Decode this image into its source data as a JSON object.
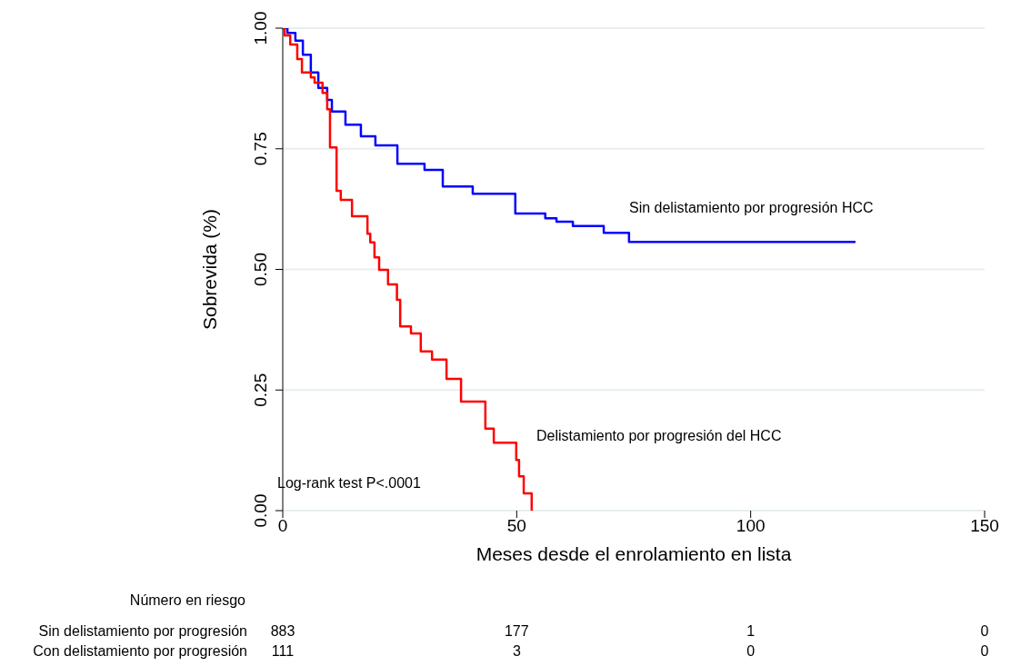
{
  "chart_data": {
    "type": "step",
    "xlabel": "Meses desde el enrolamiento en lista",
    "ylabel": "Sobrevida (%)",
    "xlim": [
      0,
      150
    ],
    "xticks": [
      0,
      50,
      100,
      150
    ],
    "ylim": [
      0,
      1
    ],
    "yticks": [
      {
        "value": 0,
        "label": "0.00"
      },
      {
        "value": 0.25,
        "label": "0.25"
      },
      {
        "value": 0.5,
        "label": "0.50"
      },
      {
        "value": 0.75,
        "label": "0.75"
      },
      {
        "value": 1,
        "label": "1.00"
      }
    ],
    "grid": "y",
    "legend": false,
    "marker": "none",
    "line_style": "solid",
    "series": [
      {
        "name": "Sin delistamiento por progresión HCC",
        "color": "#0000ff",
        "x": [
          0,
          1,
          2.7,
          4.3,
          6,
          7.6,
          9.5,
          10.5,
          13.4,
          16.7,
          19.8,
          24.5,
          30.3,
          34.2,
          40.6,
          49.7,
          56.1,
          58.5,
          62,
          68.6,
          74,
          122.4
        ],
        "values": [
          1,
          0.99,
          0.974,
          0.945,
          0.908,
          0.876,
          0.851,
          0.827,
          0.8,
          0.776,
          0.757,
          0.719,
          0.706,
          0.672,
          0.657,
          0.616,
          0.606,
          0.599,
          0.59,
          0.576,
          0.557,
          0.557
        ]
      },
      {
        "name": "Delistamiento por progresión del HCC",
        "color": "#ff0000",
        "x": [
          0,
          0.4,
          1.6,
          3.1,
          4.1,
          6,
          6.8,
          8.5,
          9.5,
          10.1,
          11.5,
          12.4,
          14.8,
          18.1,
          18.7,
          19.6,
          20.6,
          22.5,
          24.4,
          25.1,
          27.4,
          29.5,
          31.9,
          35,
          38.1,
          43.3,
          45.1,
          49.9,
          50.5,
          51.5,
          53.2
        ],
        "values": [
          1,
          0.985,
          0.966,
          0.936,
          0.908,
          0.898,
          0.887,
          0.866,
          0.832,
          0.753,
          0.663,
          0.644,
          0.61,
          0.574,
          0.556,
          0.525,
          0.499,
          0.469,
          0.437,
          0.382,
          0.367,
          0.33,
          0.313,
          0.273,
          0.226,
          0.17,
          0.141,
          0.105,
          0.071,
          0.036,
          0
        ]
      }
    ],
    "annotations": [
      "Log-rank test P<.0001",
      "Número en riesgo",
      "Sin delistamiento por progresión",
      "883",
      "177",
      "1",
      "0",
      "Con delistamiento por progresión",
      "111",
      "3",
      "0",
      "0"
    ]
  }
}
